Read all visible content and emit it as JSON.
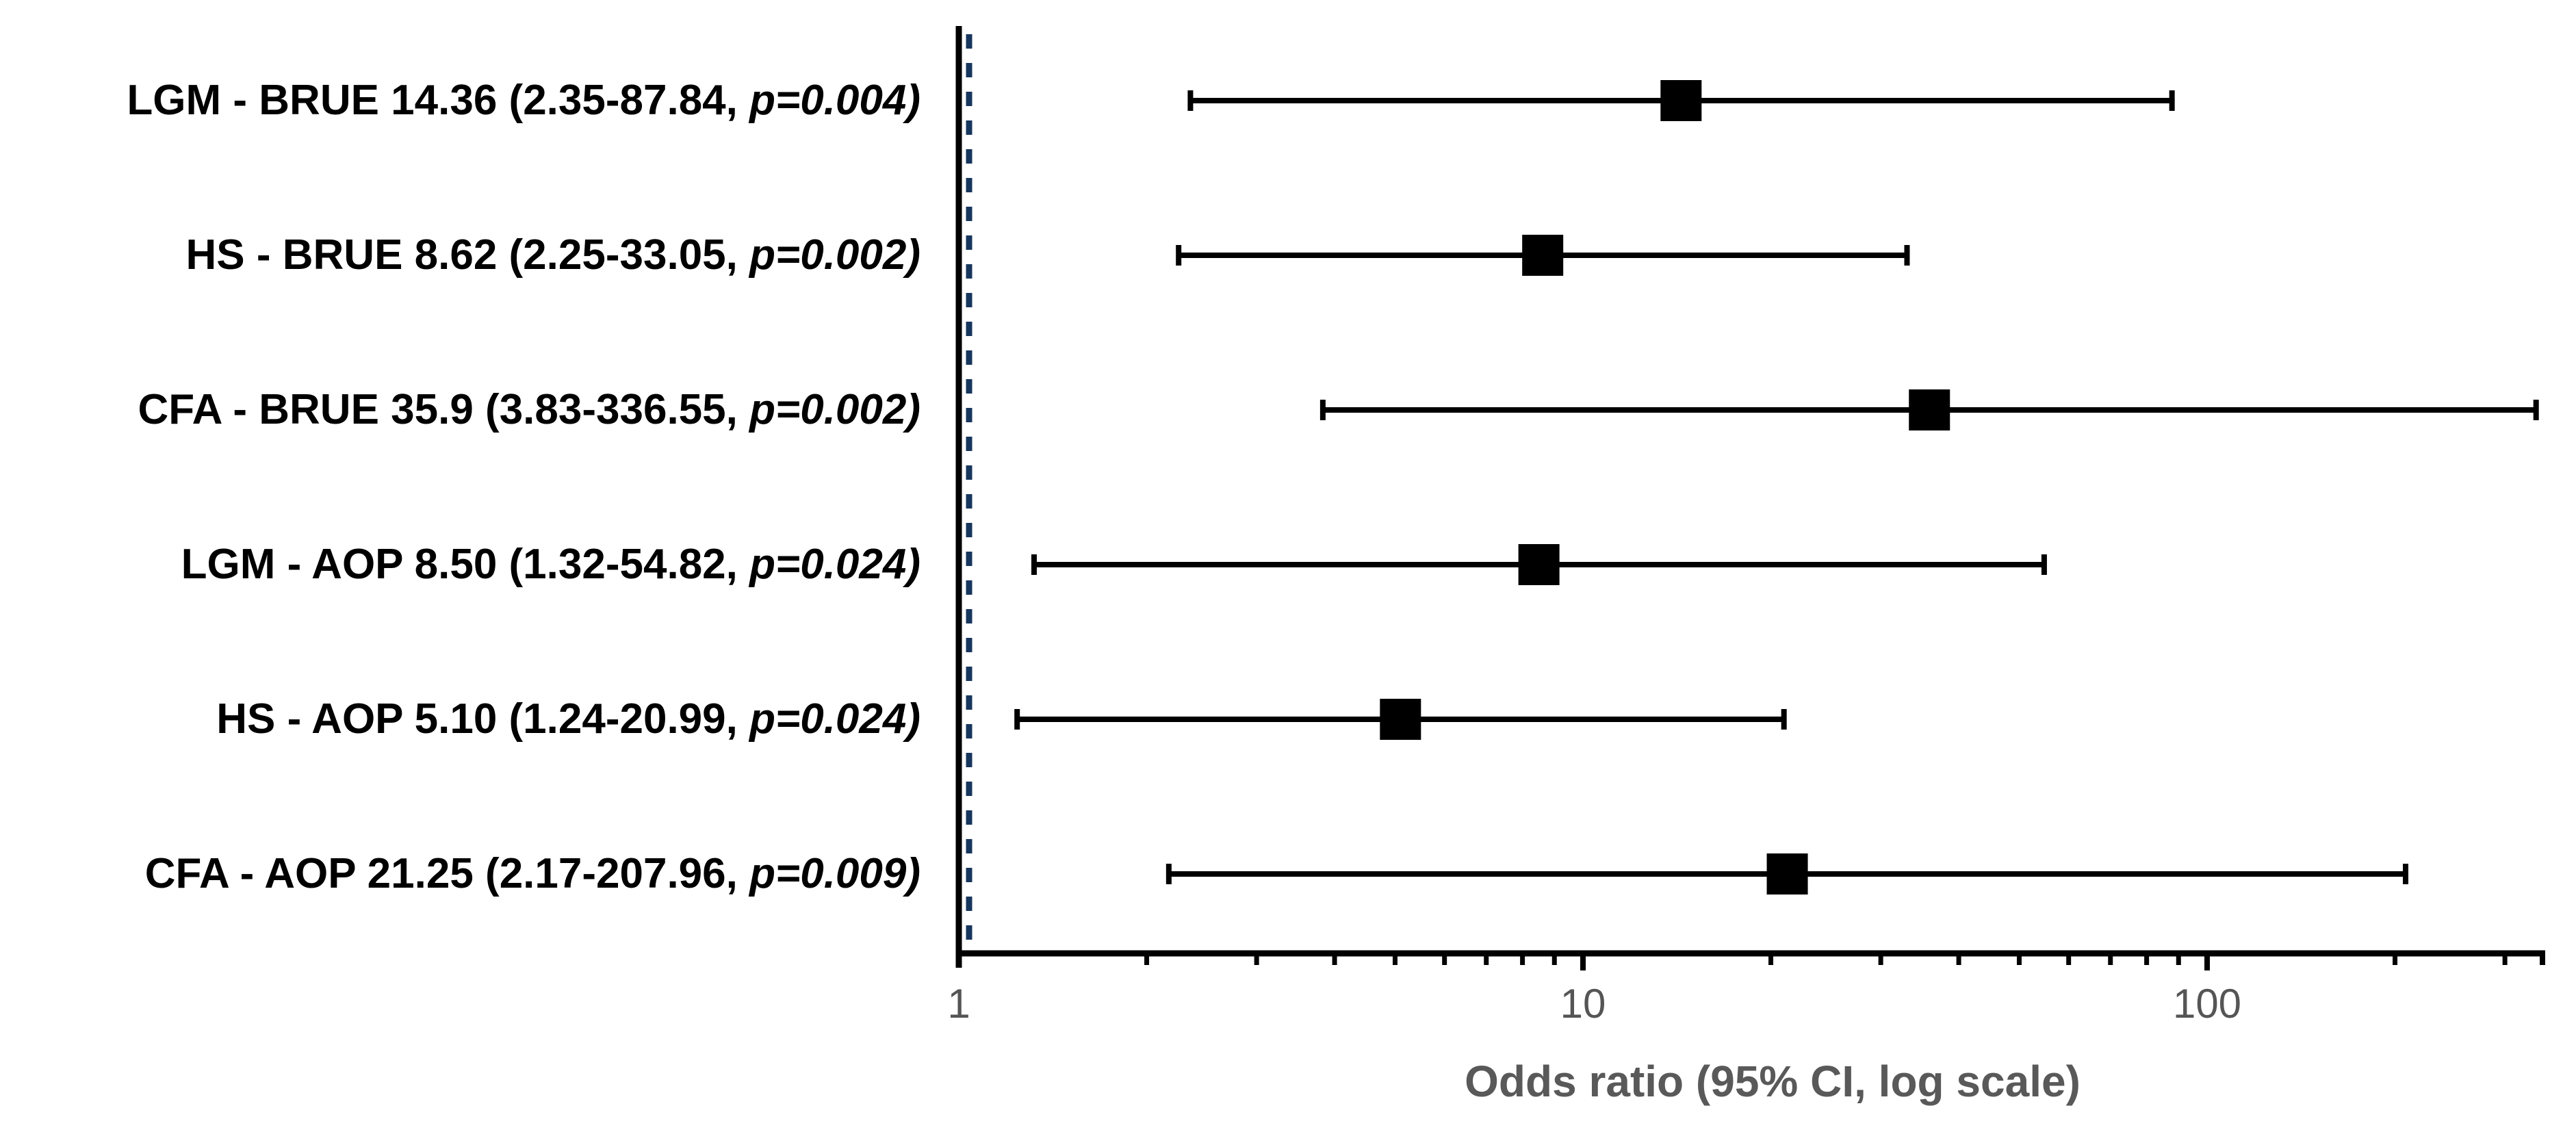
{
  "figure": {
    "background": "#ffffff"
  },
  "chart_data": {
    "type": "scatter",
    "variant": "forest-plot",
    "orientation": "horizontal",
    "title": "",
    "xlabel": "Odds ratio (95% CI, log scale)",
    "xscale": "log",
    "xlim": [
      1,
      350
    ],
    "xticks_major": [
      1,
      10,
      100
    ],
    "xtick_labels": [
      "1",
      "10",
      "100"
    ],
    "xticks_minor": [
      2,
      3,
      4,
      5,
      6,
      7,
      8,
      9,
      20,
      30,
      40,
      50,
      60,
      70,
      80,
      90,
      200,
      300
    ],
    "grid": false,
    "legend": false,
    "reference_line": {
      "x": 1,
      "style": "dashed",
      "color": "#17365d"
    },
    "marker": {
      "shape": "square",
      "color": "#000000"
    },
    "colors": {
      "axis": "#000000",
      "ci": "#000000",
      "tick_label": "#555555",
      "axis_label": "#595959",
      "reference": "#17365d"
    },
    "rows": [
      {
        "group": "LGM - BRUE",
        "or": 14.36,
        "ci_low": 2.35,
        "ci_high": 87.84,
        "p": 0.004,
        "label_main": "LGM - BRUE 14.36 (2.35-87.84, ",
        "label_pvalue": "p=0.004)"
      },
      {
        "group": "HS - BRUE",
        "or": 8.62,
        "ci_low": 2.25,
        "ci_high": 33.05,
        "p": 0.002,
        "label_main": "HS - BRUE 8.62 (2.25-33.05, ",
        "label_pvalue": "p=0.002)"
      },
      {
        "group": "CFA - BRUE",
        "or": 35.9,
        "ci_low": 3.83,
        "ci_high": 336.55,
        "p": 0.002,
        "label_main": "CFA - BRUE 35.9 (3.83-336.55, ",
        "label_pvalue": "p=0.002)"
      },
      {
        "group": "LGM - AOP",
        "or": 8.5,
        "ci_low": 1.32,
        "ci_high": 54.82,
        "p": 0.024,
        "label_main": "LGM - AOP 8.50 (1.32-54.82, ",
        "label_pvalue": "p=0.024)"
      },
      {
        "group": "HS - AOP",
        "or": 5.1,
        "ci_low": 1.24,
        "ci_high": 20.99,
        "p": 0.024,
        "label_main": "HS - AOP 5.10 (1.24-20.99, ",
        "label_pvalue": "p=0.024)"
      },
      {
        "group": "CFA - AOP",
        "or": 21.25,
        "ci_low": 2.17,
        "ci_high": 207.96,
        "p": 0.009,
        "label_main": "CFA - AOP 21.25 (2.17-207.96, ",
        "label_pvalue": "p=0.009)"
      }
    ]
  }
}
